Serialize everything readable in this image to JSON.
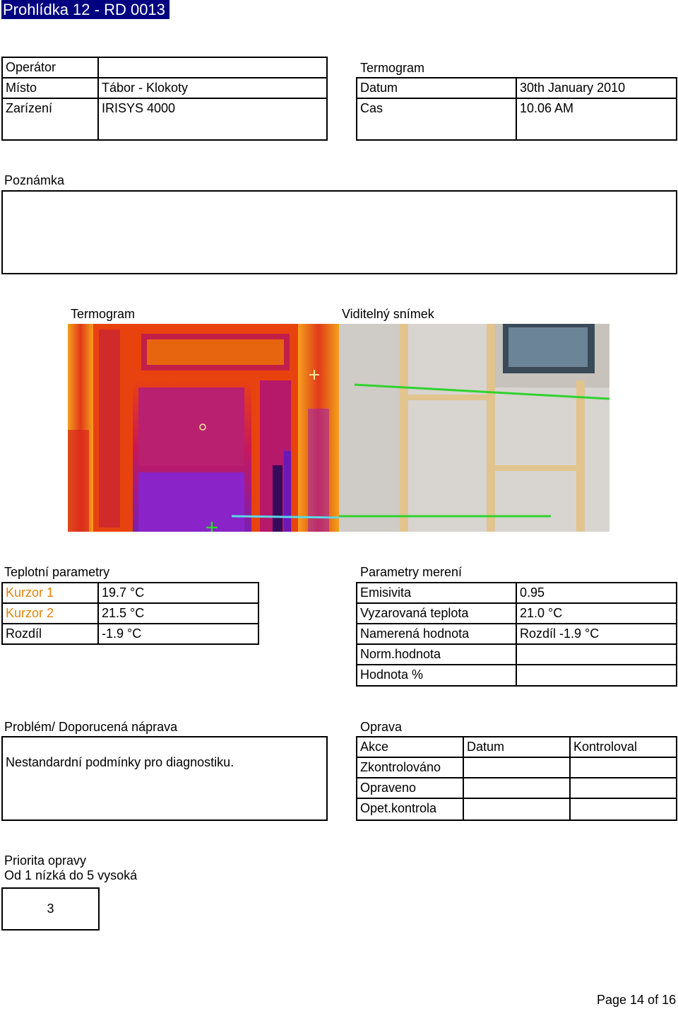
{
  "header": {
    "title": "Prohlídka 12 - RD 0013"
  },
  "info_left": {
    "operator_label": "Operátor",
    "operator_value": "",
    "place_label": "Místo",
    "place_value": "Tábor - Klokoty",
    "device_label": "Zarízení",
    "device_value": "IRISYS 4000"
  },
  "info_right": {
    "heading": "Termogram",
    "date_label": "Datum",
    "date_value": "30th January 2010",
    "time_label": "Cas",
    "time_value": "10.06 AM"
  },
  "note": {
    "label": "Poznámka",
    "value": ""
  },
  "images": {
    "thermo_label": "Termogram",
    "visible_label": "Viditelný snímek"
  },
  "temp_params": {
    "heading": "Teplotní parametry",
    "rows": [
      {
        "label": "Kurzor 1",
        "value": "19.7 °C"
      },
      {
        "label": "Kurzor 2",
        "value": "21.5 °C"
      },
      {
        "label": "Rozdíl",
        "value": "-1.9 °C"
      }
    ]
  },
  "measure_params": {
    "heading": "Parametry merení",
    "rows": [
      {
        "label": "Emisivita",
        "value": "0.95"
      },
      {
        "label": "Vyzarovaná teplota",
        "value": "21.0 °C"
      },
      {
        "label": "Namerená hodnota",
        "value": "Rozdíl -1.9 °C"
      },
      {
        "label": "Norm.hodnota",
        "value": ""
      },
      {
        "label": "Hodnota %",
        "value": ""
      }
    ]
  },
  "problem": {
    "heading": "Problém/ Doporucená náprava",
    "text": "Nestandardní podmínky pro diagnostiku."
  },
  "repair": {
    "heading": "Oprava",
    "columns": [
      "Akce",
      "Datum",
      "Kontroloval"
    ],
    "rows": [
      "Zkontrolováno",
      "Opraveno",
      "Opet.kontrola"
    ]
  },
  "priority": {
    "heading": "Priorita opravy",
    "subheading": "Od 1 nízká do 5 vysoká",
    "value": "3"
  },
  "footer": {
    "page": "Page 14 of 16"
  },
  "colors": {
    "title_bg": "#000080",
    "cursor1": "#e0840a",
    "cursor2": "#e0840a",
    "marker": "#2fd32f"
  }
}
